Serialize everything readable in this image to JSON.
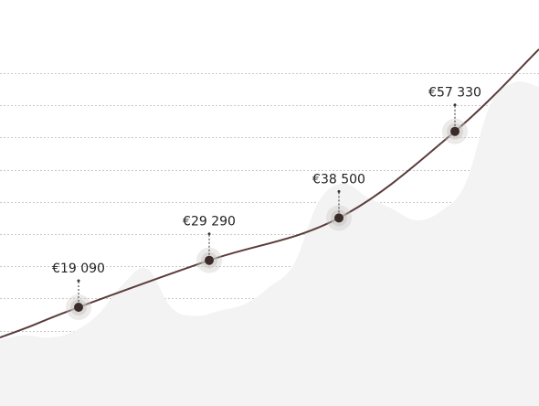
{
  "chart_data": {
    "type": "line",
    "title": "",
    "xlabel": "",
    "ylabel": "",
    "grid": true,
    "ylim": [
      0,
      90000
    ],
    "points": [
      {
        "label": "€19 090",
        "value": 19090
      },
      {
        "label": "€29 290",
        "value": 29290
      },
      {
        "label": "€38 500",
        "value": 38500
      },
      {
        "label": "€57 330",
        "value": 57330
      }
    ],
    "background_area": [
      12000,
      13000,
      12500,
      13800,
      17500,
      24000,
      27500,
      19000,
      17200,
      18400,
      19800,
      23500,
      28500,
      42000,
      46000,
      43000,
      40500,
      38000,
      40000,
      46000,
      63000,
      68000,
      67000
    ],
    "colors": {
      "line": "#5a3d3a",
      "marker": "#3a2a28",
      "marker_halo": "#c9c6c4",
      "area": "#f3f3f3",
      "grid": "#c8c8c8"
    }
  }
}
